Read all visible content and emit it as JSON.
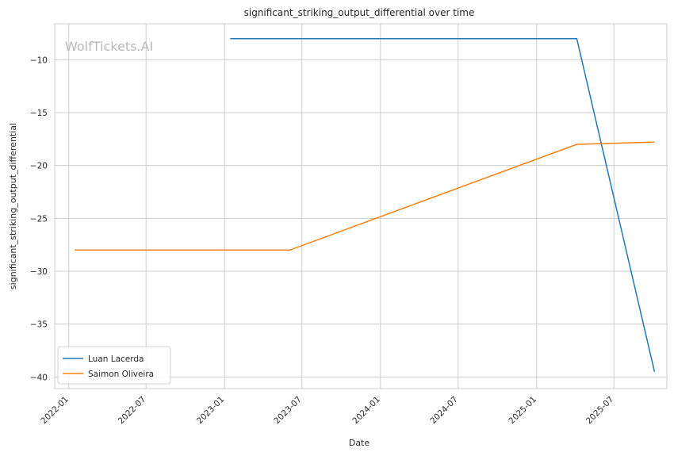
{
  "chart_data": {
    "type": "line",
    "title": "significant_striking_output_differential over time",
    "xlabel": "Date",
    "ylabel": "significant_striking_output_differential",
    "watermark": "WolfTickets.AI",
    "x_tick_labels": [
      "2022-01",
      "2022-07",
      "2023-01",
      "2023-07",
      "2024-01",
      "2024-07",
      "2025-01",
      "2025-07"
    ],
    "y_ticks": [
      -10,
      -15,
      -20,
      -25,
      -30,
      -35,
      -40
    ],
    "y_tick_labels": [
      "−10",
      "−15",
      "−20",
      "−25",
      "−30",
      "−35",
      "−40"
    ],
    "xlim": [
      "2021-11-29",
      "2025-11-02"
    ],
    "ylim": [
      -41.1,
      -6.6
    ],
    "grid": true,
    "legend_position": "lower-left",
    "series": [
      {
        "name": "Luan Lacerda",
        "color": "#1f77b4",
        "points": [
          {
            "x": "2023-01-14",
            "y": -8.0
          },
          {
            "x": "2025-04-05",
            "y": -8.0
          },
          {
            "x": "2025-10-04",
            "y": -39.5
          }
        ]
      },
      {
        "name": "Saimon Oliveira",
        "color": "#ff7f0e",
        "points": [
          {
            "x": "2022-01-15",
            "y": -28.0
          },
          {
            "x": "2023-06-03",
            "y": -28.0
          },
          {
            "x": "2025-04-05",
            "y": -18.0
          },
          {
            "x": "2025-10-04",
            "y": -17.8
          }
        ]
      }
    ]
  }
}
